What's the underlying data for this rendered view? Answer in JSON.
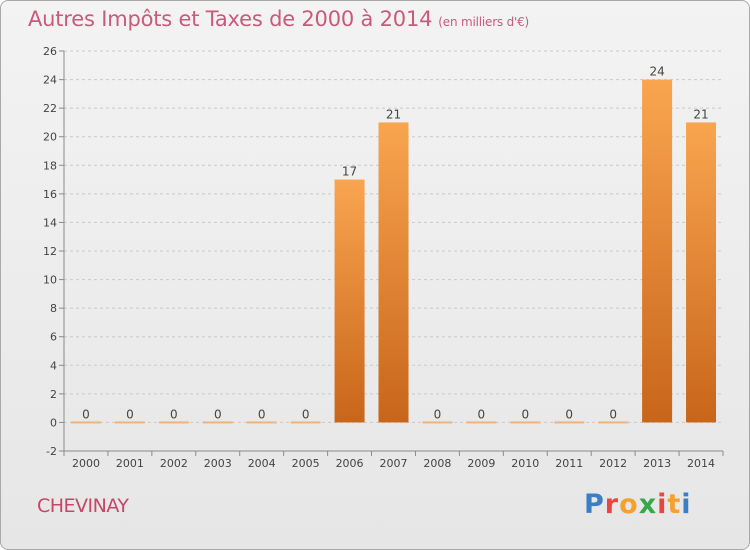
{
  "title": "Autres Impôts et Taxes de 2000 à 2014",
  "title_unit": "(en milliers d'€)",
  "commune": "CHEVINAY",
  "logo": {
    "text": "Proxiti",
    "colors": [
      "#3a7fc4",
      "#e8463f",
      "#f4a12d",
      "#3aa64a",
      "#e8463f",
      "#f4a12d",
      "#3a7fc4"
    ]
  },
  "colors": {
    "bar_top": "#f9a550",
    "bar_bottom": "#c8651a",
    "zero_bar": "#f2b27a",
    "grid": "#c9c9c9",
    "axis": "#8a8a8a",
    "text": "#444444"
  },
  "chart_data": {
    "type": "bar",
    "title": "Autres Impôts et Taxes de 2000 à 2014",
    "subtitle": "(en milliers d'€)",
    "categories": [
      "2000",
      "2001",
      "2002",
      "2003",
      "2004",
      "2005",
      "2006",
      "2007",
      "2008",
      "2009",
      "2010",
      "2011",
      "2012",
      "2013",
      "2014"
    ],
    "values": [
      0,
      0,
      0,
      0,
      0,
      0,
      17,
      21,
      0,
      0,
      0,
      0,
      0,
      24,
      21
    ],
    "data_labels": [
      "0",
      "0",
      "0",
      "0",
      "0",
      "0",
      "17",
      "21",
      "0",
      "0",
      "0",
      "0",
      "0",
      "24",
      "21"
    ],
    "xlabel": "",
    "ylabel": "",
    "ylim": [
      -2,
      26
    ],
    "yticks": [
      -2,
      0,
      2,
      4,
      6,
      8,
      10,
      12,
      14,
      16,
      18,
      20,
      22,
      24,
      26
    ],
    "grid": true,
    "legend": "none"
  }
}
